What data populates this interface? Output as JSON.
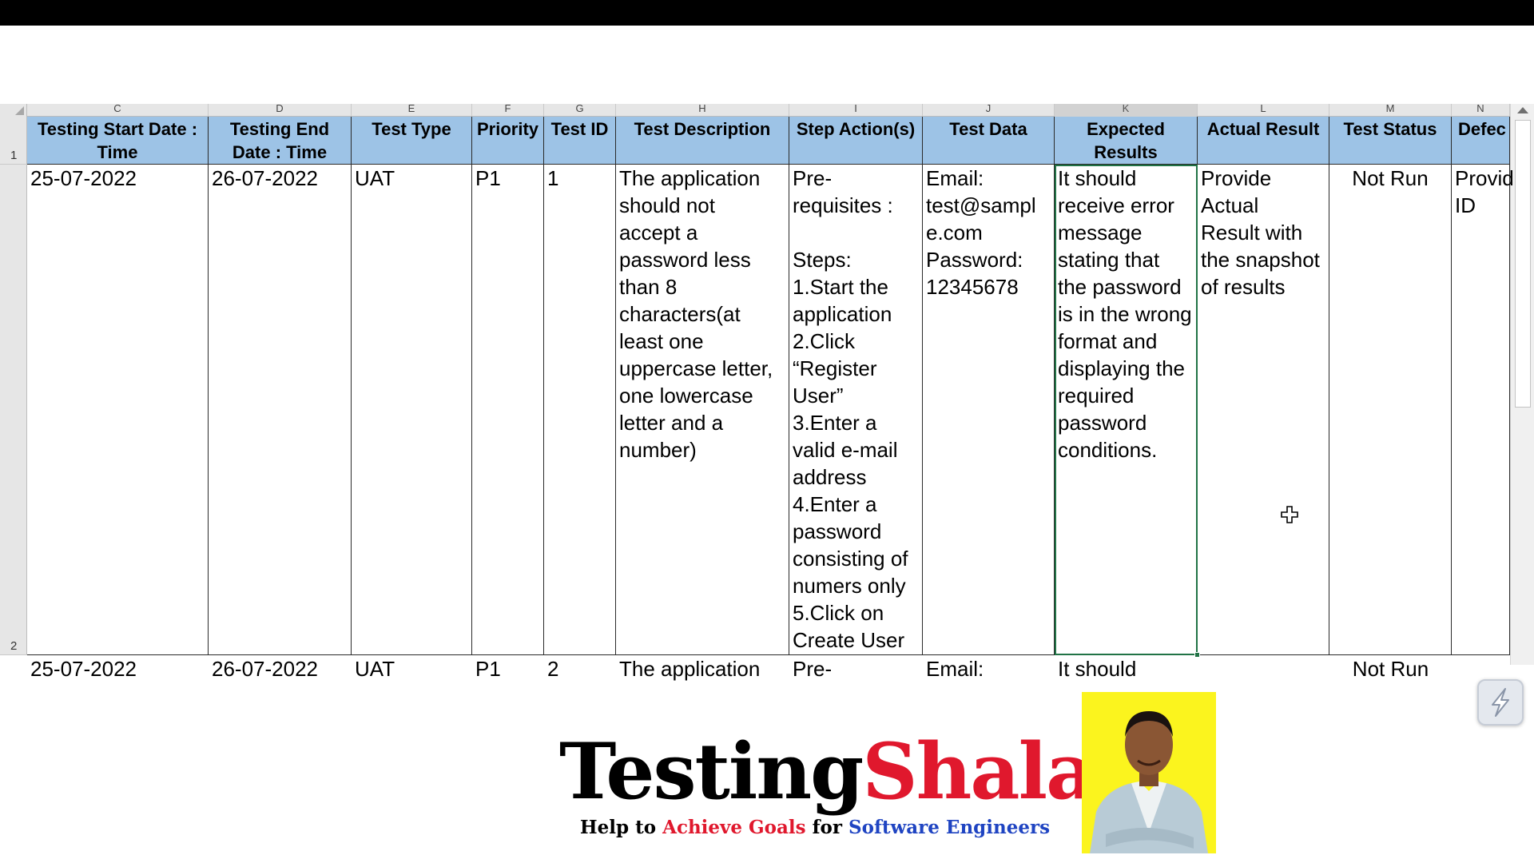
{
  "columns": [
    "C",
    "D",
    "E",
    "F",
    "G",
    "H",
    "I",
    "J",
    "K",
    "L",
    "M",
    "N"
  ],
  "active_column": "K",
  "row_numbers": [
    "1",
    "2"
  ],
  "headers": {
    "C": "Testing Start Date : Time",
    "D": "Testing End Date : Time",
    "E": "Test Type",
    "F": "Priority",
    "G": "Test ID",
    "H": "Test Description",
    "I": "Step Action(s)",
    "J": "Test Data",
    "K": "Expected Results",
    "L": "Actual Result",
    "M": "Test Status",
    "N": "Defec"
  },
  "row2": {
    "C": "25-07-2022",
    "D": "26-07-2022",
    "E": "UAT",
    "F": "P1",
    "G": "1",
    "H": "The application\nshould not\naccept a\npassword less\nthan 8\ncharacters(at\nleast one\nuppercase letter,\none lowercase\nletter and a\nnumber)",
    "I": "Pre-\nrequisites :\n\nSteps:\n1.Start the\napplication\n2.Click\n“Register\nUser”\n3.Enter a\nvalid e-mail\naddress\n4.Enter a\npassword\nconsisting of\nnumers only\n5.Click on\nCreate User",
    "J": "Email:\ntest@sampl\ne.com\nPassword:\n12345678",
    "K": "It should\nreceive error\nmessage\nstating that\nthe password\nis in the wrong\nformat and\ndisplaying the\nrequired\npassword\nconditions.",
    "L": "Provide\nActual\nResult with\nthe snapshot\nof results",
    "M": "Not Run",
    "N": "Provid\nID"
  },
  "row3_partial": {
    "C": "25-07-2022",
    "D": "26-07-2022",
    "E": "UAT",
    "F": "P1",
    "G": "2",
    "H": "The application",
    "I": "Pre-",
    "J": "Email:",
    "K": "It should",
    "M": "Not Run"
  },
  "logo": {
    "name_part1": "Testing",
    "name_part2": "Shala",
    "tagline_1": "Help to ",
    "tagline_2": "Achieve Goals",
    "tagline_3": " for ",
    "tagline_4": "Software Engineers"
  },
  "colors": {
    "header_fill": "#9dc3e6",
    "selection": "#217346",
    "logo_red": "#e0182d",
    "logo_blue": "#1f44c2",
    "photo_bg": "#fbf41e"
  },
  "icons": {
    "cursor": "cell-select-cross-cursor",
    "floating_button": "lightning-bolt-icon"
  }
}
